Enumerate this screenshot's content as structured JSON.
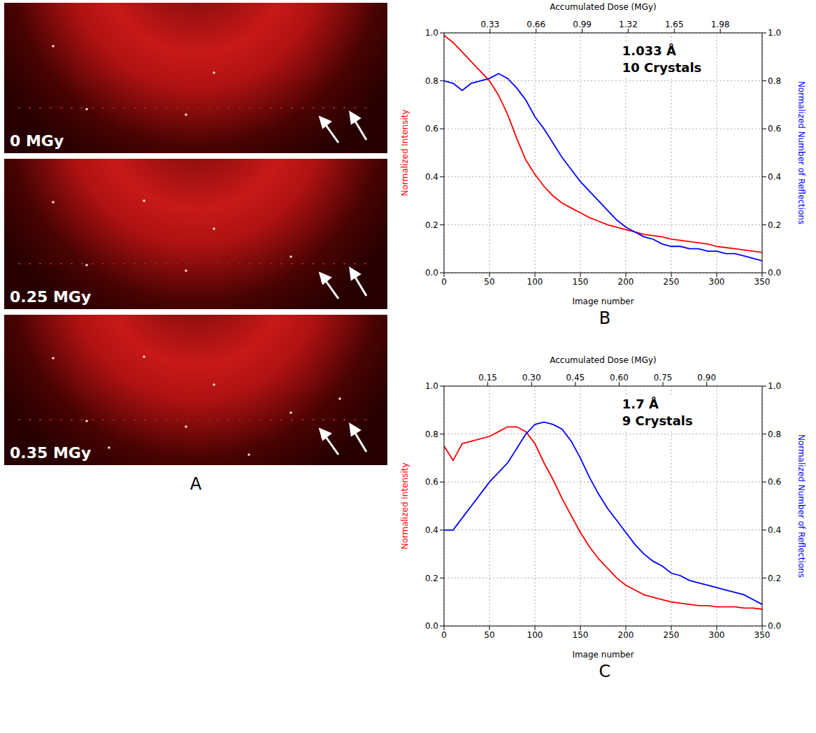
{
  "panel_a": {
    "panel": "A",
    "images": [
      {
        "label": "0 MGy"
      },
      {
        "label": "0.25 MGy"
      },
      {
        "label": "0.35 MGy"
      }
    ]
  },
  "chart_data": [
    {
      "panel": "B",
      "type": "line",
      "xlabel": "Image number",
      "ylabel": "Normalized Intensity",
      "y2label": "Normalized Number of Reflections",
      "x2label": "Accumulated Dose (MGy)",
      "annotations": [
        "1.033 Å",
        "10 Crystals"
      ],
      "grid": true,
      "x": [
        0,
        10,
        20,
        30,
        40,
        50,
        60,
        70,
        80,
        90,
        100,
        110,
        120,
        130,
        140,
        150,
        160,
        170,
        180,
        190,
        200,
        210,
        220,
        230,
        240,
        250,
        260,
        270,
        280,
        290,
        300,
        310,
        320,
        330,
        340,
        350
      ],
      "xlim": [
        0,
        350
      ],
      "xticks": [
        0,
        50,
        100,
        150,
        200,
        250,
        300,
        350
      ],
      "ylim": [
        0,
        1
      ],
      "yticks": [
        {
          "value": 0,
          "label": "0.0"
        },
        0.2,
        0.4,
        0.6,
        0.8,
        {
          "value": 1,
          "label": "1.0"
        }
      ],
      "y2lim": [
        0,
        1
      ],
      "y2ticks": [
        {
          "value": 0,
          "label": "0.0"
        },
        0.2,
        0.4,
        0.6,
        0.8,
        {
          "value": 1,
          "label": "1.0"
        }
      ],
      "x2lim": [
        0,
        2.28
      ],
      "x2ticks": [
        0.33,
        0.66,
        0.99,
        1.32,
        1.65,
        1.98
      ],
      "series": [
        {
          "color": "#ff0000",
          "values": [
            0.99,
            0.96,
            0.92,
            0.88,
            0.84,
            0.8,
            0.74,
            0.66,
            0.56,
            0.47,
            0.41,
            0.36,
            0.32,
            0.29,
            0.27,
            0.25,
            0.23,
            0.215,
            0.2,
            0.19,
            0.18,
            0.17,
            0.16,
            0.155,
            0.15,
            0.14,
            0.135,
            0.13,
            0.125,
            0.12,
            0.11,
            0.105,
            0.1,
            0.095,
            0.09,
            0.085
          ]
        },
        {
          "color": "#0000ff",
          "axis": "y2",
          "values": [
            0.8,
            0.79,
            0.76,
            0.79,
            0.8,
            0.81,
            0.83,
            0.81,
            0.77,
            0.72,
            0.65,
            0.6,
            0.54,
            0.48,
            0.43,
            0.38,
            0.34,
            0.3,
            0.26,
            0.22,
            0.19,
            0.17,
            0.15,
            0.14,
            0.12,
            0.11,
            0.11,
            0.1,
            0.1,
            0.09,
            0.09,
            0.08,
            0.08,
            0.07,
            0.06,
            0.05
          ]
        }
      ]
    },
    {
      "panel": "C",
      "type": "line",
      "xlabel": "Image number",
      "ylabel": "Normalized Intensity",
      "y2label": "Normalized Number of Reflections",
      "x2label": "Accumulated Dose (MGy)",
      "annotations": [
        "1.7 Å",
        "9 Crystals"
      ],
      "grid": true,
      "x": [
        0,
        10,
        20,
        30,
        40,
        50,
        60,
        70,
        80,
        90,
        100,
        110,
        120,
        130,
        140,
        150,
        160,
        170,
        180,
        190,
        200,
        210,
        220,
        230,
        240,
        250,
        260,
        270,
        280,
        290,
        300,
        310,
        320,
        330,
        340,
        350
      ],
      "xlim": [
        0,
        350
      ],
      "xticks": [
        0,
        50,
        100,
        150,
        200,
        250,
        300,
        350
      ],
      "ylim": [
        0,
        1
      ],
      "yticks": [
        {
          "value": 0,
          "label": "0.0"
        },
        0.2,
        0.4,
        0.6,
        0.8,
        {
          "value": 1,
          "label": "1.0"
        }
      ],
      "y2lim": [
        0,
        1
      ],
      "y2ticks": [
        {
          "value": 0,
          "label": "0.0"
        },
        0.2,
        0.4,
        0.6,
        0.8,
        {
          "value": 1,
          "label": "1.0"
        }
      ],
      "x2lim": [
        0,
        1.09
      ],
      "x2ticks": [
        0.15,
        {
          "value": 0.3,
          "label": "0.30"
        },
        0.45,
        {
          "value": 0.6,
          "label": "0.60"
        },
        0.75,
        {
          "value": 0.9,
          "label": "0.90"
        }
      ],
      "series": [
        {
          "color": "#ff0000",
          "values": [
            0.75,
            0.69,
            0.76,
            0.77,
            0.78,
            0.79,
            0.81,
            0.83,
            0.83,
            0.81,
            0.76,
            0.68,
            0.61,
            0.53,
            0.46,
            0.39,
            0.33,
            0.28,
            0.24,
            0.2,
            0.17,
            0.15,
            0.13,
            0.12,
            0.11,
            0.1,
            0.095,
            0.09,
            0.085,
            0.085,
            0.08,
            0.08,
            0.08,
            0.075,
            0.075,
            0.07
          ]
        },
        {
          "color": "#0000ff",
          "axis": "y2",
          "values": [
            0.4,
            0.4,
            0.45,
            0.5,
            0.55,
            0.6,
            0.64,
            0.68,
            0.74,
            0.8,
            0.84,
            0.85,
            0.84,
            0.82,
            0.77,
            0.7,
            0.62,
            0.55,
            0.49,
            0.44,
            0.39,
            0.34,
            0.3,
            0.27,
            0.25,
            0.22,
            0.21,
            0.19,
            0.18,
            0.17,
            0.16,
            0.15,
            0.14,
            0.13,
            0.11,
            0.09
          ]
        }
      ]
    }
  ]
}
